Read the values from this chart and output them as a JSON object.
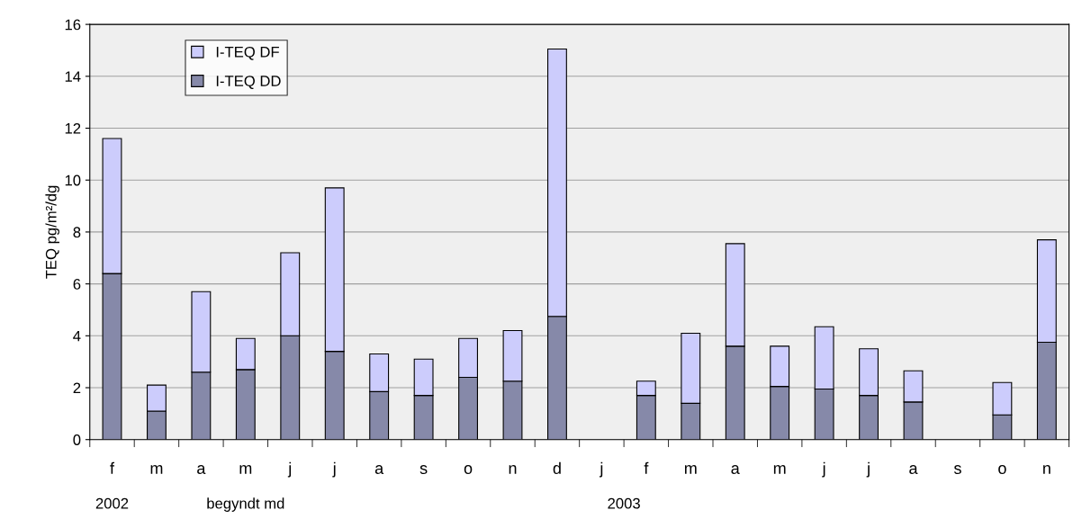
{
  "chart_data": {
    "type": "bar",
    "stacked": true,
    "ylabel": "TEQ pg/m²/dg",
    "categories": [
      "f",
      "m",
      "a",
      "m",
      "j",
      "j",
      "a",
      "s",
      "o",
      "n",
      "d",
      "j",
      "f",
      "m",
      "a",
      "m",
      "j",
      "j",
      "a",
      "s",
      "o",
      "n"
    ],
    "series": [
      {
        "name": "I-TEQ DD",
        "color": "#8689a9",
        "values": [
          6.4,
          1.1,
          2.6,
          2.7,
          4.0,
          3.4,
          1.85,
          1.7,
          2.4,
          2.25,
          4.75,
          null,
          1.7,
          1.4,
          3.6,
          2.05,
          1.95,
          1.7,
          1.45,
          null,
          0.95,
          3.75
        ]
      },
      {
        "name": "I-TEQ DF",
        "color": "#ccccfc",
        "values": [
          5.2,
          1.0,
          3.1,
          1.2,
          3.2,
          6.3,
          1.45,
          1.4,
          1.5,
          1.95,
          10.3,
          null,
          0.55,
          2.7,
          3.95,
          1.55,
          2.4,
          1.8,
          1.2,
          null,
          1.25,
          3.95
        ]
      }
    ],
    "ylim": [
      0,
      16
    ],
    "yticks": [
      0,
      2,
      4,
      6,
      8,
      10,
      12,
      14,
      16
    ],
    "grid": "y",
    "legend": "top left",
    "annotations": [
      "2002",
      "begyndt md",
      "2003"
    ]
  }
}
